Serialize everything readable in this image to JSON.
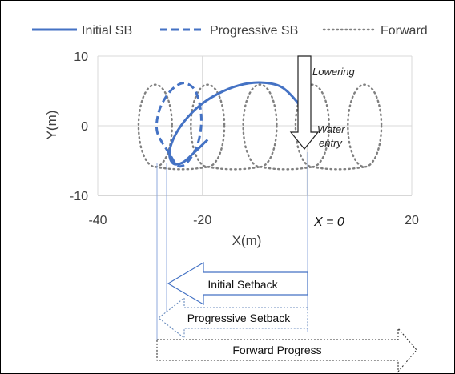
{
  "chart_data": {
    "type": "line",
    "title": "",
    "xlabel": "X(m)",
    "ylabel": "Y(m)",
    "xlim": [
      -40,
      20
    ],
    "ylim": [
      -10,
      10
    ],
    "xticks": [
      "-40",
      "-20",
      "20"
    ],
    "yticks": [
      "10",
      "0",
      "-10"
    ],
    "grid": true,
    "legend_position": "top",
    "series": [
      {
        "name": "Initial SB",
        "style": "solid",
        "color": "#4472c4",
        "x": [
          0,
          -0.5,
          -2,
          -5,
          -9,
          -13,
          -17,
          -20.5,
          -23.5,
          -25.5,
          -26.3,
          -25.6,
          -23.8,
          -21.5,
          -19
        ],
        "y": [
          0,
          1.5,
          3.5,
          5.6,
          6.2,
          5.8,
          4.6,
          2.9,
          0.6,
          -1.8,
          -4.0,
          -5.4,
          -5.3,
          -3.8,
          -2.0
        ]
      },
      {
        "name": "Progressive SB",
        "style": "dashed",
        "color": "#4472c4",
        "x": [
          -26.3,
          -28.6,
          -28.4,
          -27,
          -25.2,
          -23.2,
          -21.2,
          -20.2,
          -20.8,
          -22.6,
          -24.6,
          -26.3
        ],
        "y": [
          -4.0,
          -1.0,
          1.8,
          4.1,
          5.6,
          6.1,
          4.8,
          1.2,
          -2.4,
          -5.0,
          -5.8,
          -4.0
        ]
      },
      {
        "name": "Forward",
        "style": "dotted",
        "color": "#7f7f7f",
        "x": [
          -29,
          -19,
          -9,
          1,
          11
        ],
        "y": [
          0,
          0,
          0,
          0,
          0
        ],
        "loop_rx": 3.2,
        "loop_ry": 5.9
      }
    ],
    "annotations": [
      "Lowering",
      "Water entry",
      "X = 0"
    ]
  },
  "text": {
    "lowering": "Lowering",
    "water_line1": "Water",
    "water_line2": "entry",
    "xzero": "X = 0",
    "initial_setback": "Initial Setback",
    "progressive_setback": "Progressive Setback",
    "forward_progress": "Forward Progress"
  }
}
